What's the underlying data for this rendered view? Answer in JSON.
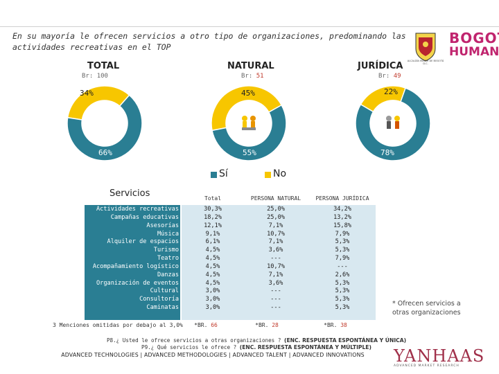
{
  "headline": "En su mayoría le ofrecen servicios a otro tipo de organizaciones, predominando las actividades recreativas en el TOP",
  "logo": {
    "line1": "BOGOTÁ",
    "line2": "HUMANA",
    "crest_caption": "ALCALDÍA MAYOR DE BOGOTÁ D.C."
  },
  "colors": {
    "si": "#2a7e93",
    "no": "#f7c600",
    "base_number": "#c0392b",
    "brand": "#c0246e"
  },
  "chart_data": [
    {
      "type": "pie",
      "variant": "donut",
      "title": "TOTAL",
      "base_label": "Br:",
      "base": "100",
      "categories": [
        "Sí",
        "No"
      ],
      "values": [
        66,
        34
      ],
      "value_labels": [
        "66%",
        "34%"
      ]
    },
    {
      "type": "pie",
      "variant": "donut",
      "title": "NATURAL",
      "base_label": "Br:",
      "base": "51",
      "categories": [
        "Sí",
        "No"
      ],
      "values": [
        55,
        45
      ],
      "value_labels": [
        "55%",
        "45%"
      ]
    },
    {
      "type": "pie",
      "variant": "donut",
      "title": "JURÍDICA",
      "base_label": "Br:",
      "base": "49",
      "categories": [
        "Sí",
        "No"
      ],
      "values": [
        78,
        22
      ],
      "value_labels": [
        "78%",
        "22%"
      ]
    },
    {
      "type": "table",
      "title": "Servicios",
      "columns": [
        "Total",
        "PERSONA NATURAL",
        "PERSONA JURÍDICA"
      ],
      "rows": [
        {
          "label": "Actividades recreativas",
          "values": [
            "30,3%",
            "25,0%",
            "34,2%"
          ]
        },
        {
          "label": "Campañas educativas",
          "values": [
            "18,2%",
            "25,0%",
            "13,2%"
          ]
        },
        {
          "label": "Asesorías",
          "values": [
            "12,1%",
            "7,1%",
            "15,8%"
          ]
        },
        {
          "label": "Música",
          "values": [
            "9,1%",
            "10,7%",
            "7,9%"
          ]
        },
        {
          "label": "Alquiler de espacios",
          "values": [
            "6,1%",
            "7,1%",
            "5,3%"
          ]
        },
        {
          "label": "Turismo",
          "values": [
            "4,5%",
            "3,6%",
            "5,3%"
          ]
        },
        {
          "label": "Teatro",
          "values": [
            "4,5%",
            "---",
            "7,9%"
          ]
        },
        {
          "label": "Acompañamiento logístico",
          "values": [
            "4,5%",
            "10,7%",
            "---"
          ]
        },
        {
          "label": "Danzas",
          "values": [
            "4,5%",
            "7,1%",
            "2,6%"
          ]
        },
        {
          "label": "Organización de eventos",
          "values": [
            "4,5%",
            "3,6%",
            "5,3%"
          ]
        },
        {
          "label": "Cultural",
          "values": [
            "3,0%",
            "---",
            "5,3%"
          ]
        },
        {
          "label": "Consultoría",
          "values": [
            "3,0%",
            "---",
            "5,3%"
          ]
        },
        {
          "label": "Caminatas",
          "values": [
            "3,0%",
            "---",
            "5,3%"
          ]
        }
      ],
      "omitted_note": "3 Menciones omitidas por debajo al 3,0%",
      "base_prefix": "*BR.",
      "bases": [
        "66",
        "28",
        "38"
      ]
    }
  ],
  "legend": {
    "si": "Sí",
    "no": "No"
  },
  "side_note": "* Ofrecen servicios a otras organizaciones",
  "footnotes": {
    "p8": "P8.¿ Usted le ofrece servicios a otras organizaciones ?",
    "p8_bold": "(ENC. RESPUESTA ESPONTÁNEA Y ÚNICA)",
    "p9": "P9.¿ Qué servicios le ofrece ?",
    "p9_bold": "(ENC. RESPUESTA ESPONTÁNEA Y MÚLTIPLE)"
  },
  "footer": "ADVANCED TECHNOLOGIES | ADVANCED METHODOLOGIES | ADVANCED TALENT | ADVANCED INNOVATIONS",
  "brand": {
    "name": "YANHAAS",
    "tagline": "ADVANCED MARKET RESEARCH"
  }
}
